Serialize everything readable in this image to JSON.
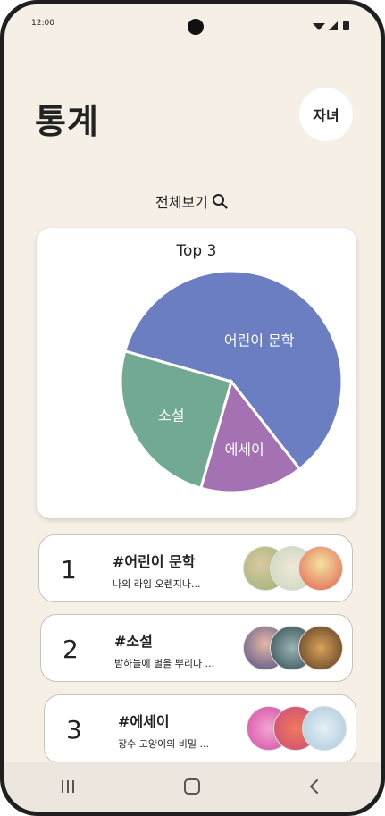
{
  "status": {
    "time": "12:00"
  },
  "header": {
    "title": "통계",
    "profile_label": "자녀"
  },
  "view_all": {
    "label": "전체보기"
  },
  "chart_data": {
    "type": "pie",
    "title": "Top 3",
    "categories": [
      "어린이 문학",
      "에세이",
      "소설"
    ],
    "values": [
      60,
      15,
      25
    ],
    "colors": [
      "#6b7ec2",
      "#a472b3",
      "#72a993"
    ]
  },
  "ranking": [
    {
      "rank": "1",
      "tag": "#어린이 문학",
      "desc": "나의 라임 오렌지나..."
    },
    {
      "rank": "2",
      "tag": "#소설",
      "desc": "밤하늘에 별을 뿌리다 ..."
    },
    {
      "rank": "3",
      "tag": "#에세이",
      "desc": "장수 고양이의 비밀 ..."
    }
  ],
  "nav": {
    "recents_icon": "recents-icon",
    "home_icon": "home-icon",
    "back_icon": "back-icon"
  }
}
